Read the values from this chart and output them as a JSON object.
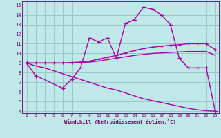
{
  "bg_color": "#c0e8e8",
  "grid_color": "#98c8c8",
  "line_color": "#aa00aa",
  "xlabel": "Windchill (Refroidissement éolien,°C)",
  "xlim": [
    2,
    23
  ],
  "ylim": [
    4,
    15
  ],
  "xticks": [
    2,
    3,
    4,
    5,
    6,
    7,
    8,
    9,
    10,
    11,
    12,
    13,
    14,
    15,
    16,
    17,
    18,
    19,
    20,
    21,
    22,
    23
  ],
  "yticks": [
    4,
    5,
    6,
    7,
    8,
    9,
    10,
    11,
    12,
    13,
    14,
    15
  ],
  "series1_x": [
    2,
    3,
    4,
    5,
    6,
    7,
    8,
    9,
    10,
    11,
    12,
    13,
    14,
    15,
    16,
    17,
    18,
    19,
    20,
    21,
    22,
    23
  ],
  "series1_y": [
    9.0,
    9.0,
    9.0,
    9.0,
    9.0,
    9.0,
    9.05,
    9.1,
    9.2,
    9.35,
    9.5,
    9.65,
    9.8,
    9.9,
    10.0,
    10.05,
    10.1,
    10.15,
    10.2,
    10.2,
    10.2,
    9.8
  ],
  "series2_x": [
    2,
    3,
    4,
    5,
    6,
    7,
    8,
    9,
    10,
    11,
    12,
    13,
    14,
    15,
    16,
    17,
    18,
    19,
    20,
    21,
    22,
    23
  ],
  "series2_y": [
    9.0,
    9.0,
    9.0,
    9.0,
    9.0,
    9.05,
    9.1,
    9.2,
    9.4,
    9.6,
    9.8,
    10.05,
    10.3,
    10.5,
    10.65,
    10.75,
    10.85,
    10.9,
    11.0,
    11.0,
    11.0,
    10.4
  ],
  "series3_x": [
    2,
    3,
    6,
    7,
    8,
    9,
    10,
    11,
    12,
    13,
    14,
    15,
    16,
    17,
    18,
    19,
    20,
    21,
    22,
    23
  ],
  "series3_y": [
    9.0,
    7.7,
    6.4,
    7.3,
    8.5,
    11.6,
    11.2,
    11.6,
    9.5,
    13.1,
    13.5,
    14.8,
    14.6,
    14.0,
    13.0,
    9.5,
    8.5,
    8.5,
    8.5,
    4.0
  ],
  "series4_x": [
    2,
    3,
    4,
    5,
    6,
    7,
    8,
    9,
    10,
    11,
    12,
    13,
    14,
    15,
    16,
    17,
    18,
    19,
    20,
    21,
    22,
    23
  ],
  "series4_y": [
    9.0,
    8.7,
    8.5,
    8.2,
    7.9,
    7.6,
    7.3,
    7.0,
    6.7,
    6.4,
    6.2,
    5.9,
    5.6,
    5.3,
    5.1,
    4.9,
    4.7,
    4.5,
    4.3,
    4.15,
    4.05,
    4.0
  ]
}
